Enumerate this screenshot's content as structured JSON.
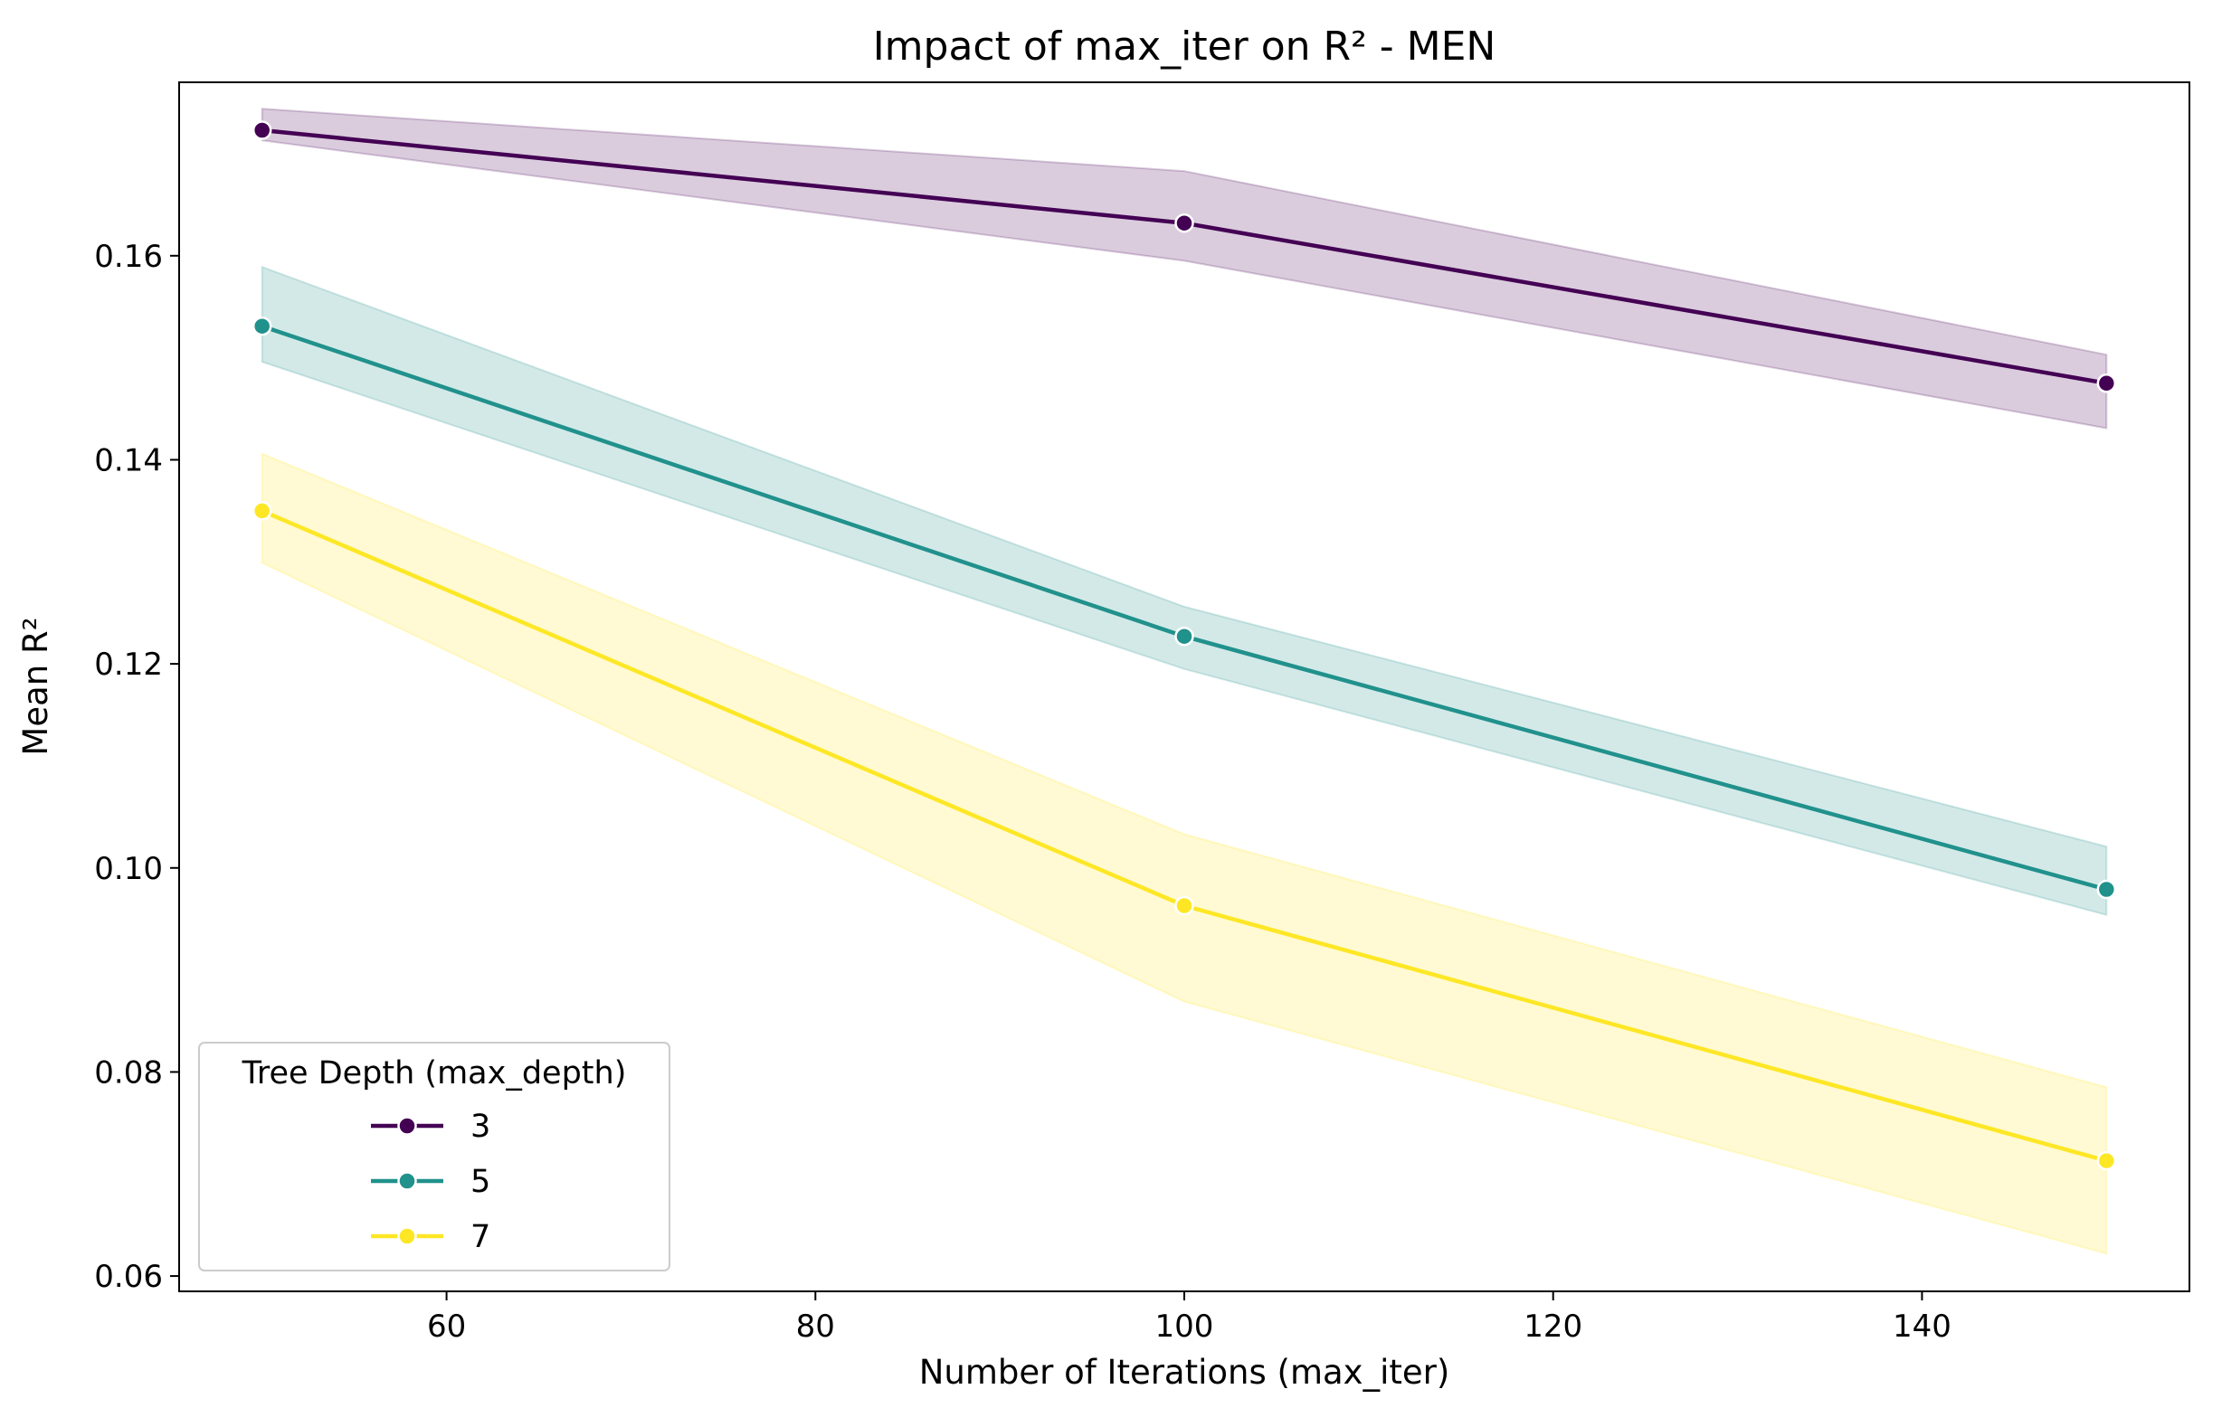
{
  "chart_data": {
    "type": "line",
    "title": "Impact of max_iter on R² - MEN",
    "xlabel": "Number of Iterations (max_iter)",
    "ylabel": "Mean R²",
    "xlim": [
      45.5,
      154.5
    ],
    "ylim": [
      0.0585,
      0.177
    ],
    "xticks": [
      60,
      80,
      100,
      120,
      140
    ],
    "yticks": [
      0.06,
      0.08,
      0.1,
      0.12,
      0.14,
      0.16
    ],
    "x": [
      50,
      100,
      150
    ],
    "grid": false,
    "legend": {
      "title": "Tree Depth (max_depth)",
      "position": "lower-left"
    },
    "series": [
      {
        "name": "3",
        "color": "#440154",
        "values": [
          0.1723,
          0.1632,
          0.1475
        ],
        "ci_lower": [
          0.1713,
          0.1595,
          0.1431
        ],
        "ci_upper": [
          0.1744,
          0.1683,
          0.1503
        ]
      },
      {
        "name": "5",
        "color": "#21918c",
        "values": [
          0.1531,
          0.1227,
          0.0979
        ],
        "ci_lower": [
          0.1496,
          0.1195,
          0.0954
        ],
        "ci_upper": [
          0.1589,
          0.1256,
          0.1021
        ]
      },
      {
        "name": "7",
        "color": "#fde725",
        "values": [
          0.135,
          0.0963,
          0.0713
        ],
        "ci_lower": [
          0.1299,
          0.0869,
          0.0622
        ],
        "ci_upper": [
          0.1406,
          0.1033,
          0.0785
        ]
      }
    ]
  }
}
